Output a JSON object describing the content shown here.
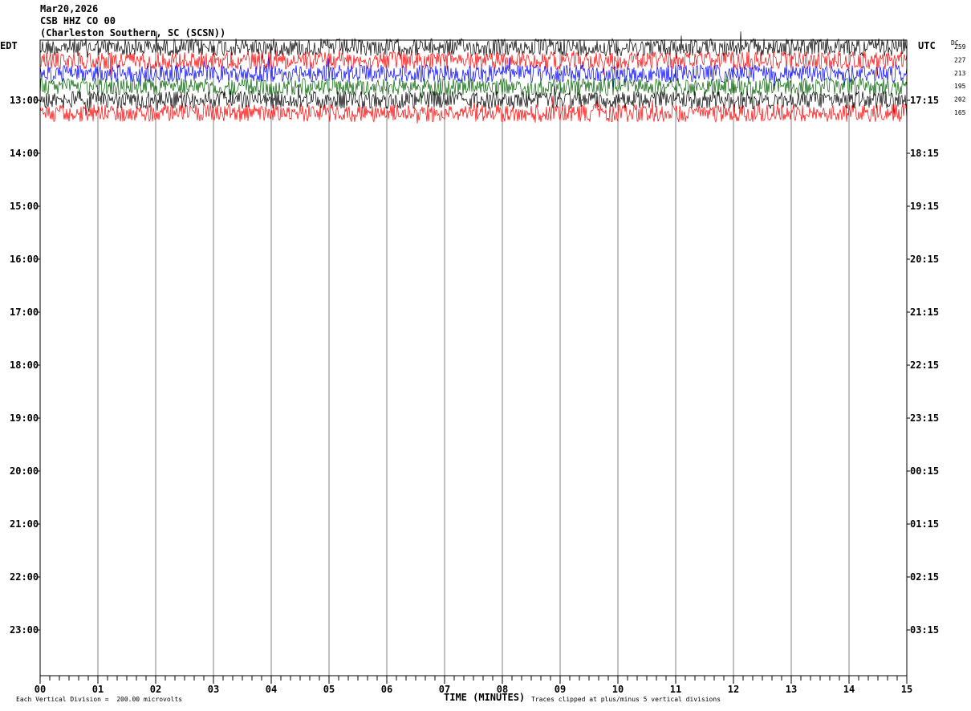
{
  "header": {
    "date": "Mar20,2026",
    "station": "CSB HHZ CO 00",
    "location": "(Charleston Southern, SC (SCSN))"
  },
  "timezones": {
    "left": "EDT",
    "right": "UTC"
  },
  "dc_label": "DC",
  "footer": {
    "scale": "Each Vertical Division =  200.00 microvolts",
    "clip": "Traces clipped at plus/minus 5 vertical divisions"
  },
  "chart_data": {
    "type": "line",
    "xlabel": "TIME (MINUTES)",
    "x_ticks": [
      "00",
      "01",
      "02",
      "03",
      "04",
      "05",
      "06",
      "07",
      "08",
      "09",
      "10",
      "11",
      "12",
      "13",
      "14",
      "15"
    ],
    "xlim": [
      0,
      15
    ],
    "rows_local": [
      "13:00",
      "14:00",
      "15:00",
      "16:00",
      "17:00",
      "18:00",
      "19:00",
      "20:00",
      "21:00",
      "22:00",
      "23:00"
    ],
    "rows_utc": [
      "17:15",
      "18:15",
      "19:15",
      "20:15",
      "21:15",
      "22:15",
      "23:15",
      "00:15",
      "01:15",
      "02:15",
      "03:15"
    ],
    "traces": [
      {
        "color": "#000000",
        "dc": "259"
      },
      {
        "color": "#ff0000",
        "dc": "227"
      },
      {
        "color": "#0000ff",
        "dc": "213"
      },
      {
        "color": "#006400",
        "dc": "195"
      },
      {
        "color": "#000000",
        "dc": "202"
      },
      {
        "color": "#ff0000",
        "dc": "165"
      }
    ],
    "grid": true
  }
}
